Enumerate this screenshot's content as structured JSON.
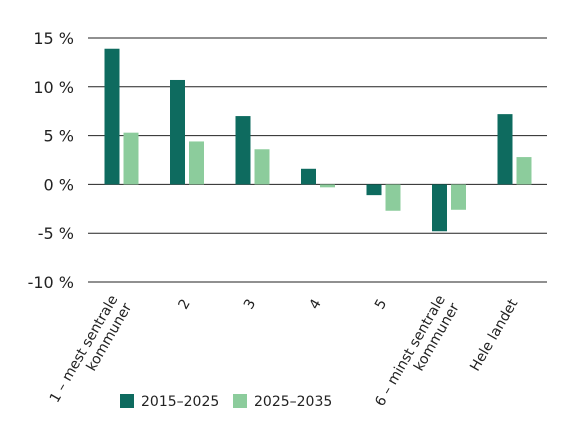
{
  "chart_data": {
    "type": "bar",
    "categories": [
      [
        "1 – mest sentrale",
        "kommuner"
      ],
      [
        "2"
      ],
      [
        "3"
      ],
      [
        "4"
      ],
      [
        "5"
      ],
      [
        "6 – minst sentrale",
        "kommuner"
      ],
      [
        "Hele landet"
      ]
    ],
    "series": [
      {
        "name": "2015–2025",
        "color": "#0e6b5f",
        "values": [
          13.9,
          10.7,
          7.0,
          1.6,
          -1.1,
          -4.8,
          7.2
        ]
      },
      {
        "name": "2025–2035",
        "color": "#8ccc9c",
        "values": [
          5.3,
          4.4,
          3.6,
          -0.3,
          -2.7,
          -2.6,
          2.8
        ]
      }
    ],
    "ylim": [
      -10,
      15
    ],
    "yticks": [
      15,
      10,
      5,
      0,
      -5,
      -10
    ],
    "ytick_labels": [
      "15 %",
      "10 %",
      "5 %",
      "0 %",
      "-5 %",
      "-10 %"
    ],
    "grid": true,
    "legend_position": "bottom"
  }
}
